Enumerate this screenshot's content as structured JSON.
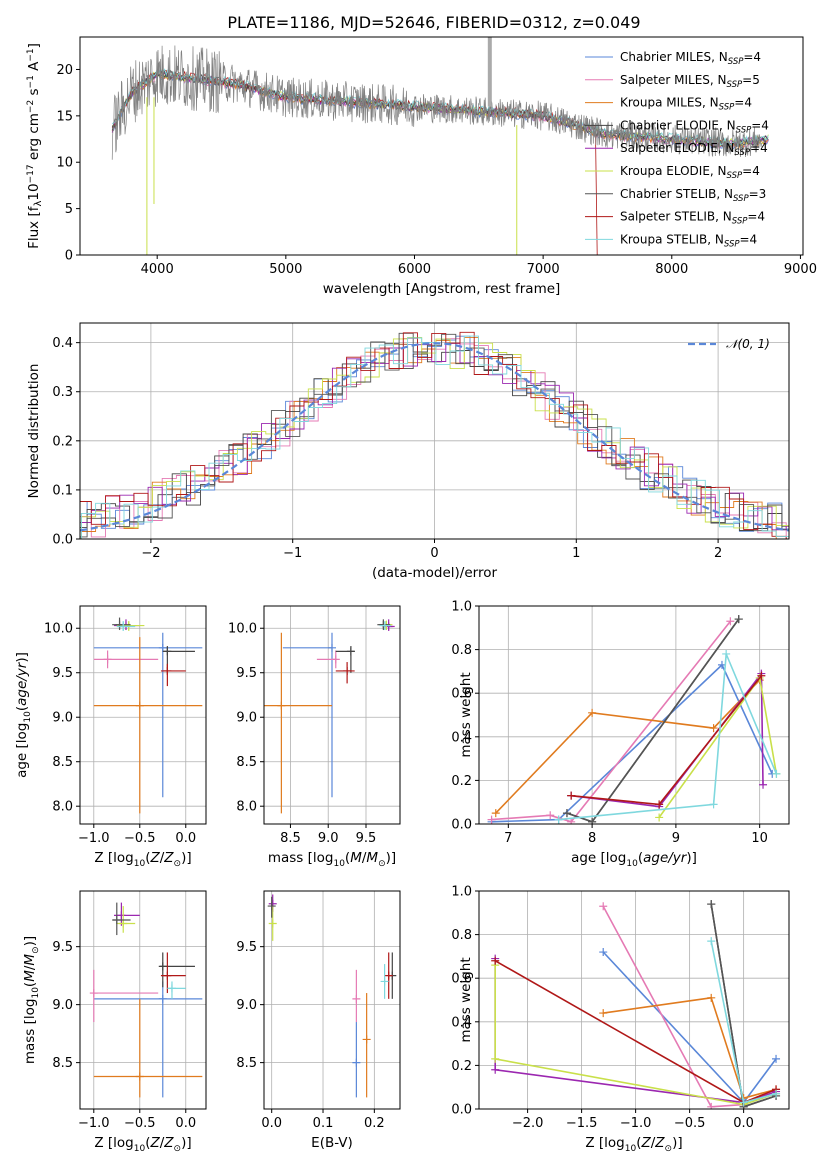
{
  "figure": {
    "title": "PLATE=1186, MJD=52646, FIBERID=0312, z=0.049"
  },
  "models": [
    {
      "label": "Chabrier MILES, N",
      "n": "=4",
      "color": "#5a87d8"
    },
    {
      "label": "Salpeter MILES, N",
      "n": "=5",
      "color": "#e57ab4"
    },
    {
      "label": "Kroupa MILES, N",
      "n": "=4",
      "color": "#e07b1f"
    },
    {
      "label": "Chabrier ELODIE, N",
      "n": "=4",
      "color": "#444444"
    },
    {
      "label": "Salpeter ELODIE, N",
      "n": "=4",
      "color": "#9b27b0"
    },
    {
      "label": "Kroupa ELODIE, N",
      "n": "=4",
      "color": "#c9e04a"
    },
    {
      "label": "Chabrier STELIB, N",
      "n": "=3",
      "color": "#555555"
    },
    {
      "label": "Salpeter STELIB, N",
      "n": "=4",
      "color": "#b01818"
    },
    {
      "label": "Kroupa STELIB, N",
      "n": "=4",
      "color": "#7fd8de"
    }
  ],
  "nsub": "SSP",
  "chart_data": [
    {
      "type": "line",
      "id": "spectrum",
      "title": "PLATE=1186, MJD=52646, FIBERID=0312, z=0.049",
      "xlabel": "wavelength [Angstrom, rest frame]",
      "ylabel": "Flux [f",
      "xlim": [
        3400,
        9020
      ],
      "ylim": [
        0,
        23.5
      ],
      "xticks": [
        4000,
        5000,
        6000,
        7000,
        8000,
        9000
      ],
      "yticks": [
        0,
        5,
        10,
        15,
        20
      ],
      "x_range_data": [
        3650,
        8750
      ],
      "continuum": [
        [
          3650,
          13.5
        ],
        [
          3800,
          17.5
        ],
        [
          4000,
          19.5
        ],
        [
          4300,
          19.0
        ],
        [
          4600,
          18.5
        ],
        [
          5000,
          17.0
        ],
        [
          5500,
          16.5
        ],
        [
          6000,
          16.0
        ],
        [
          6500,
          15.5
        ],
        [
          7000,
          15.0
        ],
        [
          7500,
          13.0
        ],
        [
          8000,
          12.5
        ],
        [
          8500,
          12.0
        ],
        [
          8750,
          12.5
        ]
      ],
      "legend": "top-right",
      "grid": false
    },
    {
      "type": "bar",
      "id": "residuals",
      "xlabel": "(data-model)/error",
      "ylabel": "Normed distribution",
      "xlim": [
        -2.5,
        2.5
      ],
      "ylim": [
        0,
        0.44
      ],
      "xticks": [
        -2,
        -1,
        0,
        1,
        2
      ],
      "yticks": [
        0.0,
        0.1,
        0.2,
        0.3,
        0.4
      ],
      "reference": "N(0,1)",
      "legend": "top-right",
      "grid": true
    },
    {
      "type": "scatter",
      "id": "age_vs_Z",
      "xlabel": "Z [log",
      "ylabel": "age  [log",
      "xlim": [
        -1.15,
        0.22
      ],
      "ylim": [
        7.8,
        10.25
      ],
      "xticks": [
        -1.0,
        -0.5,
        0.0
      ],
      "yticks": [
        8.0,
        8.5,
        9.0,
        9.5,
        10.0
      ],
      "grid": true,
      "points": [
        {
          "m": 0,
          "x": -0.25,
          "y": 9.78,
          "x0": -1.0,
          "x1": 0.18,
          "y0": 8.1,
          "y1": 9.95
        },
        {
          "m": 1,
          "x": -0.85,
          "y": 9.65,
          "x0": -1.0,
          "x1": -0.3,
          "y0": 9.55,
          "y1": 9.75
        },
        {
          "m": 2,
          "x": -0.5,
          "y": 9.13,
          "x0": -1.0,
          "x1": 0.18,
          "y0": 7.92,
          "y1": 9.9
        },
        {
          "m": 3,
          "x": -0.2,
          "y": 9.74,
          "x0": -0.25,
          "x1": 0.1,
          "y0": 9.5,
          "y1": 9.8
        },
        {
          "m": 4,
          "x": -0.65,
          "y": 10.03,
          "x0": -0.78,
          "x1": -0.5,
          "y0": 9.98,
          "y1": 10.1
        },
        {
          "m": 5,
          "x": -0.62,
          "y": 10.03,
          "x0": -0.75,
          "x1": -0.45,
          "y0": 9.97,
          "y1": 10.08
        },
        {
          "m": 6,
          "x": -0.72,
          "y": 10.04,
          "x0": -0.8,
          "x1": -0.6,
          "y0": 9.98,
          "y1": 10.12
        },
        {
          "m": 7,
          "x": -0.2,
          "y": 9.52,
          "x0": -0.27,
          "x1": 0.0,
          "y0": 9.35,
          "y1": 9.6
        },
        {
          "m": 8,
          "x": -0.68,
          "y": 10.02,
          "x0": -0.75,
          "x1": -0.55,
          "y0": 9.97,
          "y1": 10.08
        }
      ]
    },
    {
      "type": "scatter",
      "id": "age_vs_mass",
      "xlabel": "mass [log",
      "ylabel": "",
      "xlim": [
        8.15,
        9.95
      ],
      "ylim": [
        7.8,
        10.25
      ],
      "xticks": [
        8.5,
        9.0,
        9.5
      ],
      "yticks": [
        8.0,
        8.5,
        9.0,
        9.5,
        10.0
      ],
      "grid": true,
      "points": [
        {
          "m": 0,
          "x": 9.05,
          "y": 9.78,
          "x0": 8.4,
          "x1": 9.05,
          "y0": 8.1,
          "y1": 9.95
        },
        {
          "m": 1,
          "x": 9.1,
          "y": 9.65,
          "x0": 8.85,
          "x1": 9.1,
          "y0": 9.55,
          "y1": 9.75
        },
        {
          "m": 2,
          "x": 8.38,
          "y": 9.13,
          "x0": 8.0,
          "x1": 9.05,
          "y0": 7.92,
          "y1": 9.95
        },
        {
          "m": 3,
          "x": 9.3,
          "y": 9.74,
          "x0": 9.1,
          "x1": 9.35,
          "y0": 9.5,
          "y1": 9.8
        },
        {
          "m": 4,
          "x": 9.8,
          "y": 10.02,
          "x0": 9.72,
          "x1": 9.88,
          "y0": 9.97,
          "y1": 10.1
        },
        {
          "m": 5,
          "x": 9.77,
          "y": 10.04,
          "x0": 9.68,
          "x1": 9.85,
          "y0": 9.98,
          "y1": 10.08
        },
        {
          "m": 6,
          "x": 9.73,
          "y": 10.04,
          "x0": 9.65,
          "x1": 9.82,
          "y0": 9.98,
          "y1": 10.1
        },
        {
          "m": 7,
          "x": 9.25,
          "y": 9.52,
          "x0": 9.1,
          "x1": 9.35,
          "y0": 9.38,
          "y1": 9.62
        },
        {
          "m": 8,
          "x": 9.75,
          "y": 10.03,
          "x0": 9.68,
          "x1": 9.83,
          "y0": 9.98,
          "y1": 10.08
        }
      ]
    },
    {
      "type": "line",
      "id": "massweight_vs_age",
      "xlabel": "age  [log",
      "ylabel": "mass weight",
      "xlim": [
        6.65,
        10.35
      ],
      "ylim": [
        0,
        1.0
      ],
      "xticks": [
        7,
        8,
        9,
        10
      ],
      "yticks": [
        0.0,
        0.2,
        0.4,
        0.6,
        0.8,
        1.0
      ],
      "grid": true,
      "series": [
        {
          "m": 0,
          "x": [
            6.8,
            7.6,
            9.55,
            10.15
          ],
          "y": [
            0.01,
            0.02,
            0.73,
            0.23
          ]
        },
        {
          "m": 1,
          "x": [
            6.8,
            7.5,
            7.75,
            9.65
          ],
          "y": [
            0.02,
            0.04,
            0.01,
            0.93
          ]
        },
        {
          "m": 2,
          "x": [
            6.85,
            8.0,
            9.45,
            10.0
          ],
          "y": [
            0.05,
            0.51,
            0.44,
            0.66
          ]
        },
        {
          "m": 3,
          "x": [
            7.7,
            8.0,
            9.75
          ],
          "y": [
            0.05,
            0.01,
            0.94
          ]
        },
        {
          "m": 4,
          "x": [
            7.75,
            8.8,
            10.02,
            10.04
          ],
          "y": [
            0.13,
            0.08,
            0.69,
            0.18
          ]
        },
        {
          "m": 5,
          "x": [
            8.8,
            10.0,
            10.2
          ],
          "y": [
            0.03,
            0.67,
            0.23
          ]
        },
        {
          "m": 6,
          "x": [
            7.7,
            8.0,
            9.75
          ],
          "y": [
            0.05,
            0.01,
            0.94
          ]
        },
        {
          "m": 7,
          "x": [
            7.75,
            8.8,
            10.02
          ],
          "y": [
            0.13,
            0.09,
            0.68
          ]
        },
        {
          "m": 8,
          "x": [
            7.6,
            9.45,
            9.6,
            10.2
          ],
          "y": [
            0.02,
            0.09,
            0.78,
            0.23
          ]
        }
      ]
    },
    {
      "type": "scatter",
      "id": "mass_vs_Z",
      "xlabel": "Z [log",
      "ylabel": "mass [log",
      "xlim": [
        -1.15,
        0.22
      ],
      "ylim": [
        8.1,
        9.98
      ],
      "xticks": [
        -1.0,
        -0.5,
        0.0
      ],
      "yticks": [
        8.5,
        9.0,
        9.5
      ],
      "grid": true,
      "points": [
        {
          "m": 0,
          "x": -0.25,
          "y": 9.05,
          "x0": -1.0,
          "x1": 0.18,
          "y0": 8.2,
          "y1": 9.2
        },
        {
          "m": 1,
          "x": -1.0,
          "y": 9.1,
          "x0": -1.0,
          "x1": -0.3,
          "y0": 8.85,
          "y1": 9.3
        },
        {
          "m": 2,
          "x": -0.5,
          "y": 8.38,
          "x0": -1.0,
          "x1": 0.18,
          "y0": 8.2,
          "y1": 9.05
        },
        {
          "m": 3,
          "x": -0.25,
          "y": 9.33,
          "x0": -0.28,
          "x1": 0.1,
          "y0": 9.15,
          "y1": 9.45
        },
        {
          "m": 4,
          "x": -0.7,
          "y": 9.77,
          "x0": -0.78,
          "x1": -0.5,
          "y0": 9.68,
          "y1": 9.88
        },
        {
          "m": 5,
          "x": -0.68,
          "y": 9.7,
          "x0": -0.75,
          "x1": -0.55,
          "y0": 9.62,
          "y1": 9.85
        },
        {
          "m": 6,
          "x": -0.75,
          "y": 9.73,
          "x0": -0.8,
          "x1": -0.6,
          "y0": 9.6,
          "y1": 9.88
        },
        {
          "m": 7,
          "x": -0.2,
          "y": 9.25,
          "x0": -0.27,
          "x1": 0.0,
          "y0": 9.1,
          "y1": 9.45
        },
        {
          "m": 8,
          "x": -0.15,
          "y": 9.14,
          "x0": -0.2,
          "x1": 0.0,
          "y0": 9.05,
          "y1": 9.2
        }
      ]
    },
    {
      "type": "scatter",
      "id": "mass_vs_ebv",
      "xlabel": "E(B-V)",
      "ylabel": "",
      "xlim": [
        -0.015,
        0.25
      ],
      "ylim": [
        8.1,
        9.98
      ],
      "xticks": [
        0.0,
        0.1,
        0.2
      ],
      "yticks": [
        8.5,
        9.0,
        9.5
      ],
      "grid": true,
      "points": [
        {
          "m": 0,
          "x": 0.165,
          "y": 8.5,
          "y0": 8.2,
          "y1": 8.85
        },
        {
          "m": 1,
          "x": 0.165,
          "y": 9.05,
          "y0": 8.85,
          "y1": 9.3
        },
        {
          "m": 2,
          "x": 0.185,
          "y": 8.7,
          "y0": 8.2,
          "y1": 9.1
        },
        {
          "m": 3,
          "x": 0.235,
          "y": 9.25,
          "y0": 9.05,
          "y1": 9.45
        },
        {
          "m": 4,
          "x": 0.002,
          "y": 9.87,
          "y0": 9.8,
          "y1": 9.95
        },
        {
          "m": 5,
          "x": 0.002,
          "y": 9.7,
          "y0": 9.55,
          "y1": 9.85
        },
        {
          "m": 6,
          "x": 0.0,
          "y": 9.85,
          "y0": 9.75,
          "y1": 9.93
        },
        {
          "m": 7,
          "x": 0.228,
          "y": 9.25,
          "y0": 9.05,
          "y1": 9.45
        },
        {
          "m": 8,
          "x": 0.22,
          "y": 9.2,
          "y0": 9.05,
          "y1": 9.35
        }
      ]
    },
    {
      "type": "line",
      "id": "massweight_vs_Z",
      "xlabel": "Z [log",
      "ylabel": "mass weight",
      "xlim": [
        -2.45,
        0.42
      ],
      "ylim": [
        0,
        1.0
      ],
      "xticks": [
        -2.0,
        -1.5,
        -1.0,
        -0.5,
        0.0
      ],
      "yticks": [
        0.0,
        0.2,
        0.4,
        0.6,
        0.8,
        1.0
      ],
      "grid": true,
      "series": [
        {
          "m": 0,
          "x": [
            -1.3,
            0.0,
            0.3
          ],
          "y": [
            0.72,
            0.03,
            0.23
          ]
        },
        {
          "m": 1,
          "x": [
            -1.3,
            -0.3,
            0.0
          ],
          "y": [
            0.93,
            0.01,
            0.02
          ]
        },
        {
          "m": 2,
          "x": [
            -1.3,
            -0.3,
            0.0,
            0.3
          ],
          "y": [
            0.44,
            0.51,
            0.05,
            0.09
          ]
        },
        {
          "m": 3,
          "x": [
            -0.3,
            0.0,
            0.3
          ],
          "y": [
            0.94,
            0.01,
            0.06
          ]
        },
        {
          "m": 4,
          "x": [
            -2.3,
            -2.3,
            0.0,
            0.3
          ],
          "y": [
            0.69,
            0.18,
            0.03,
            0.08
          ]
        },
        {
          "m": 5,
          "x": [
            -2.3,
            -2.3,
            0.0,
            0.3
          ],
          "y": [
            0.66,
            0.23,
            0.02,
            0.07
          ]
        },
        {
          "m": 6,
          "x": [
            -0.3,
            0.0,
            0.3
          ],
          "y": [
            0.94,
            0.01,
            0.06
          ]
        },
        {
          "m": 7,
          "x": [
            -2.3,
            0.0,
            0.3
          ],
          "y": [
            0.68,
            0.03,
            0.09
          ]
        },
        {
          "m": 8,
          "x": [
            -0.3,
            0.0,
            0.3
          ],
          "y": [
            0.77,
            0.03,
            0.07
          ]
        }
      ]
    }
  ]
}
